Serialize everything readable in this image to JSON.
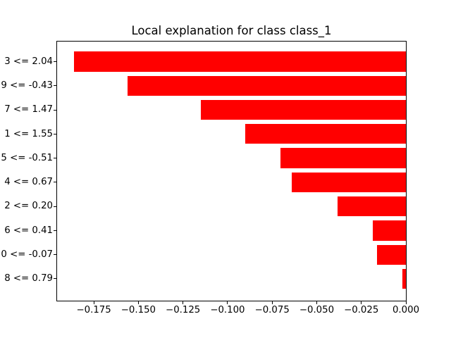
{
  "window": {
    "background_color": "#ffffff"
  },
  "chart_data": {
    "type": "bar",
    "orientation": "horizontal",
    "title": "Local explanation for class class_1",
    "categories": [
      "3 <= 2.04",
      "9 <= -0.43",
      "7 <= 1.47",
      "1 <= 1.55",
      "5 <= -0.51",
      "4 <= 0.67",
      "2 <= 0.20",
      "6 <= 0.41",
      "0 <= -0.07",
      "8 <= 0.79"
    ],
    "values": [
      -0.186,
      -0.156,
      -0.115,
      -0.09,
      -0.0705,
      -0.064,
      -0.0384,
      -0.0187,
      -0.0161,
      -0.0021
    ],
    "bar_color": "#ff0000",
    "axis_color": "#000000",
    "xlabel": "",
    "ylabel": "",
    "xlim": [
      -0.1956,
      0
    ],
    "grid": false,
    "legend": null,
    "xticks": [
      {
        "label": "−0.175",
        "value": -0.175
      },
      {
        "label": "−0.150",
        "value": -0.15
      },
      {
        "label": "−0.125",
        "value": -0.125
      },
      {
        "label": "−0.100",
        "value": -0.1
      },
      {
        "label": "−0.075",
        "value": -0.075
      },
      {
        "label": "−0.050",
        "value": -0.05
      },
      {
        "label": "−0.025",
        "value": -0.025
      },
      {
        "label": "0.000",
        "value": 0.0
      }
    ]
  }
}
